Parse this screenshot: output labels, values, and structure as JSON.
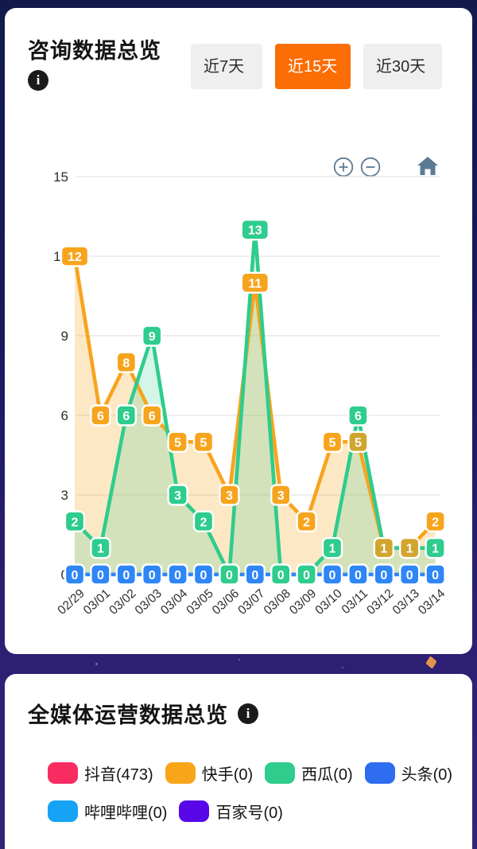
{
  "consult_card": {
    "title": "咨询数据总览",
    "range_tabs": [
      {
        "label": "近7天",
        "active": false
      },
      {
        "label": "近15天",
        "active": true
      },
      {
        "label": "近30天",
        "active": false
      }
    ],
    "active_tab_color": "#fb6d05",
    "inactive_tab_color": "#efefef"
  },
  "icons": {
    "info": "i",
    "zoom_in": "circled-plus",
    "zoom_out": "circled-minus",
    "home": "house"
  },
  "chart_data": {
    "type": "line",
    "x": [
      "02/29",
      "03/01",
      "03/02",
      "03/03",
      "03/04",
      "03/05",
      "03/06",
      "03/07",
      "03/08",
      "03/09",
      "03/10",
      "03/11",
      "03/12",
      "03/13",
      "03/14"
    ],
    "series": [
      {
        "name": "orange-series",
        "color": "#f7a41d",
        "values": [
          12,
          6,
          8,
          6,
          5,
          5,
          3,
          11,
          3,
          2,
          5,
          5,
          1,
          1,
          2
        ]
      },
      {
        "name": "green-series",
        "color": "#2ecc8d",
        "values": [
          2,
          1,
          6,
          9,
          3,
          2,
          0,
          13,
          0,
          0,
          1,
          6,
          1,
          1,
          1
        ]
      },
      {
        "name": "blue-series",
        "color": "#2e86f7",
        "values": [
          0,
          0,
          0,
          0,
          0,
          0,
          0,
          0,
          0,
          0,
          0,
          0,
          0,
          0,
          0
        ]
      }
    ],
    "yticks": [
      0,
      3,
      6,
      9,
      12,
      15
    ],
    "ylim": [
      0,
      15
    ],
    "grid": true,
    "grid_color": "#e3e3e3",
    "axis_text_color": "#2e2e2e",
    "overlap_badge_color": "#d1a52f",
    "area_opacity": {
      "orange-series": 0.25,
      "green-series": 0.2
    },
    "legend_position": "none"
  },
  "media_card": {
    "title": "全媒体运营数据总览",
    "legend": [
      {
        "label": "抖音(473)",
        "color": "#f92c62"
      },
      {
        "label": "快手(0)",
        "color": "#f9a51a"
      },
      {
        "label": "西瓜(0)",
        "color": "#2ecc8d"
      },
      {
        "label": "头条(0)",
        "color": "#2e6cf0"
      },
      {
        "label": "哔哩哔哩(0)",
        "color": "#16a3f5"
      },
      {
        "label": "百家号(0)",
        "color": "#5807e8"
      }
    ]
  },
  "colors": {
    "page_top": "#121a4d",
    "page_divider": "#2c2073",
    "toolbar_icon": "#5c7a93",
    "diamond_decoration": "#e2944d"
  }
}
